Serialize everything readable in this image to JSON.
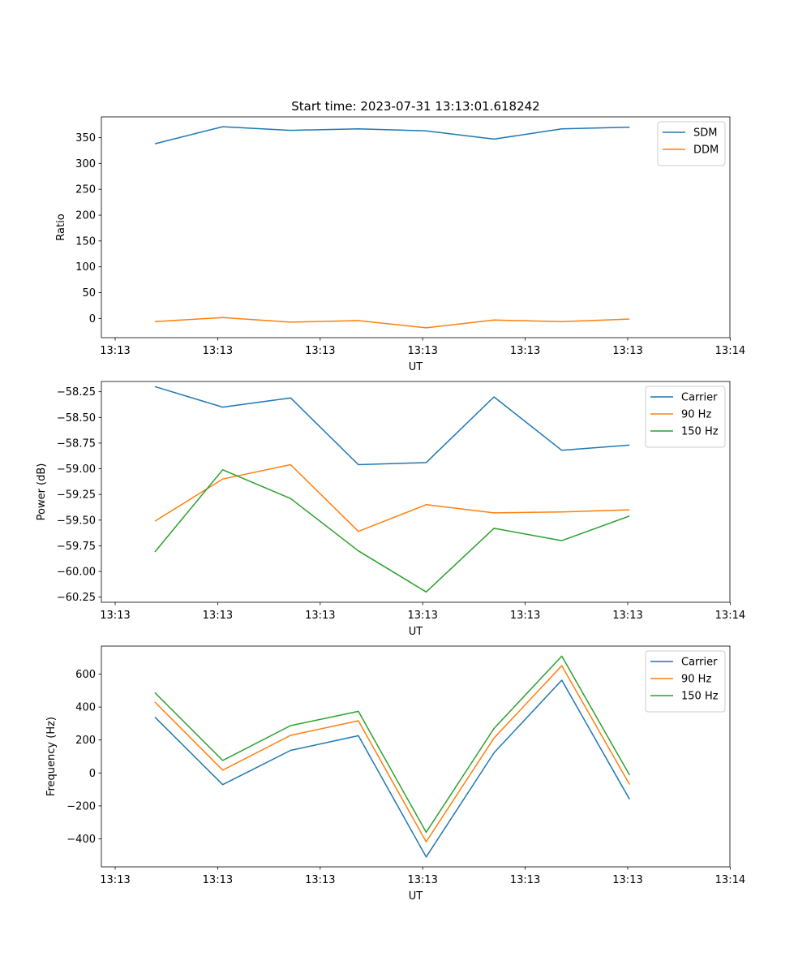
{
  "title": "Start time: 2023-07-31 13:13:01.618242",
  "chart_data": [
    {
      "type": "line",
      "xlabel": "UT",
      "ylabel": "Ratio",
      "x_ticks": [
        "13:13",
        "13:13",
        "13:13",
        "13:13",
        "13:13",
        "13:13",
        "13:14"
      ],
      "x": [
        1,
        2,
        3,
        4,
        5,
        6,
        7,
        8
      ],
      "xlim": [
        0.21,
        9.48
      ],
      "ylim": [
        -37,
        390
      ],
      "y_ticks": [
        0,
        50,
        100,
        150,
        200,
        250,
        300,
        350
      ],
      "legend": "top-right",
      "series": [
        {
          "name": "SDM",
          "color": "#1f77b4",
          "values": [
            338,
            371,
            364,
            367,
            363,
            347,
            367,
            370
          ]
        },
        {
          "name": "DDM",
          "color": "#ff7f0e",
          "values": [
            -6,
            2,
            -7,
            -4,
            -18,
            -3,
            -6,
            -1
          ]
        }
      ]
    },
    {
      "type": "line",
      "xlabel": "UT",
      "ylabel": "Power (dB)",
      "x_ticks": [
        "13:13",
        "13:13",
        "13:13",
        "13:13",
        "13:13",
        "13:13",
        "13:14"
      ],
      "x": [
        1,
        2,
        3,
        4,
        5,
        6,
        7,
        8
      ],
      "xlim": [
        0.21,
        9.48
      ],
      "ylim": [
        -60.3,
        -58.15
      ],
      "y_ticks": [
        "-58.25",
        "-58.50",
        "-58.75",
        "-59.00",
        "-59.25",
        "-59.50",
        "-59.75",
        "-60.00",
        "-60.25"
      ],
      "legend": "top-right",
      "series": [
        {
          "name": "Carrier",
          "color": "#1f77b4",
          "values": [
            -58.2,
            -58.4,
            -58.31,
            -58.96,
            -58.94,
            -58.3,
            -58.82,
            -58.77
          ]
        },
        {
          "name": "90 Hz",
          "color": "#ff7f0e",
          "values": [
            -59.51,
            -59.1,
            -58.96,
            -59.61,
            -59.35,
            -59.43,
            -59.42,
            -59.4
          ]
        },
        {
          "name": "150 Hz",
          "color": "#2ca02c",
          "values": [
            -59.81,
            -59.01,
            -59.29,
            -59.8,
            -60.2,
            -59.58,
            -59.7,
            -59.46
          ]
        }
      ]
    },
    {
      "type": "line",
      "xlabel": "UT",
      "ylabel": "Frequency (Hz)",
      "x_ticks": [
        "13:13",
        "13:13",
        "13:13",
        "13:13",
        "13:13",
        "13:13",
        "13:14"
      ],
      "x": [
        1,
        2,
        3,
        4,
        5,
        6,
        7,
        8
      ],
      "xlim": [
        0.21,
        9.48
      ],
      "ylim": [
        -570,
        770
      ],
      "y_ticks": [
        -400,
        -200,
        0,
        200,
        400,
        600
      ],
      "legend": "top-right",
      "series": [
        {
          "name": "Carrier",
          "color": "#1f77b4",
          "values": [
            339,
            -71,
            137,
            226,
            -510,
            122,
            563,
            -160
          ]
        },
        {
          "name": "90 Hz",
          "color": "#ff7f0e",
          "values": [
            430,
            17,
            228,
            317,
            -418,
            212,
            651,
            -70
          ]
        },
        {
          "name": "150 Hz",
          "color": "#2ca02c",
          "values": [
            487,
            76,
            287,
            374,
            -360,
            270,
            709,
            -13
          ]
        }
      ]
    }
  ]
}
